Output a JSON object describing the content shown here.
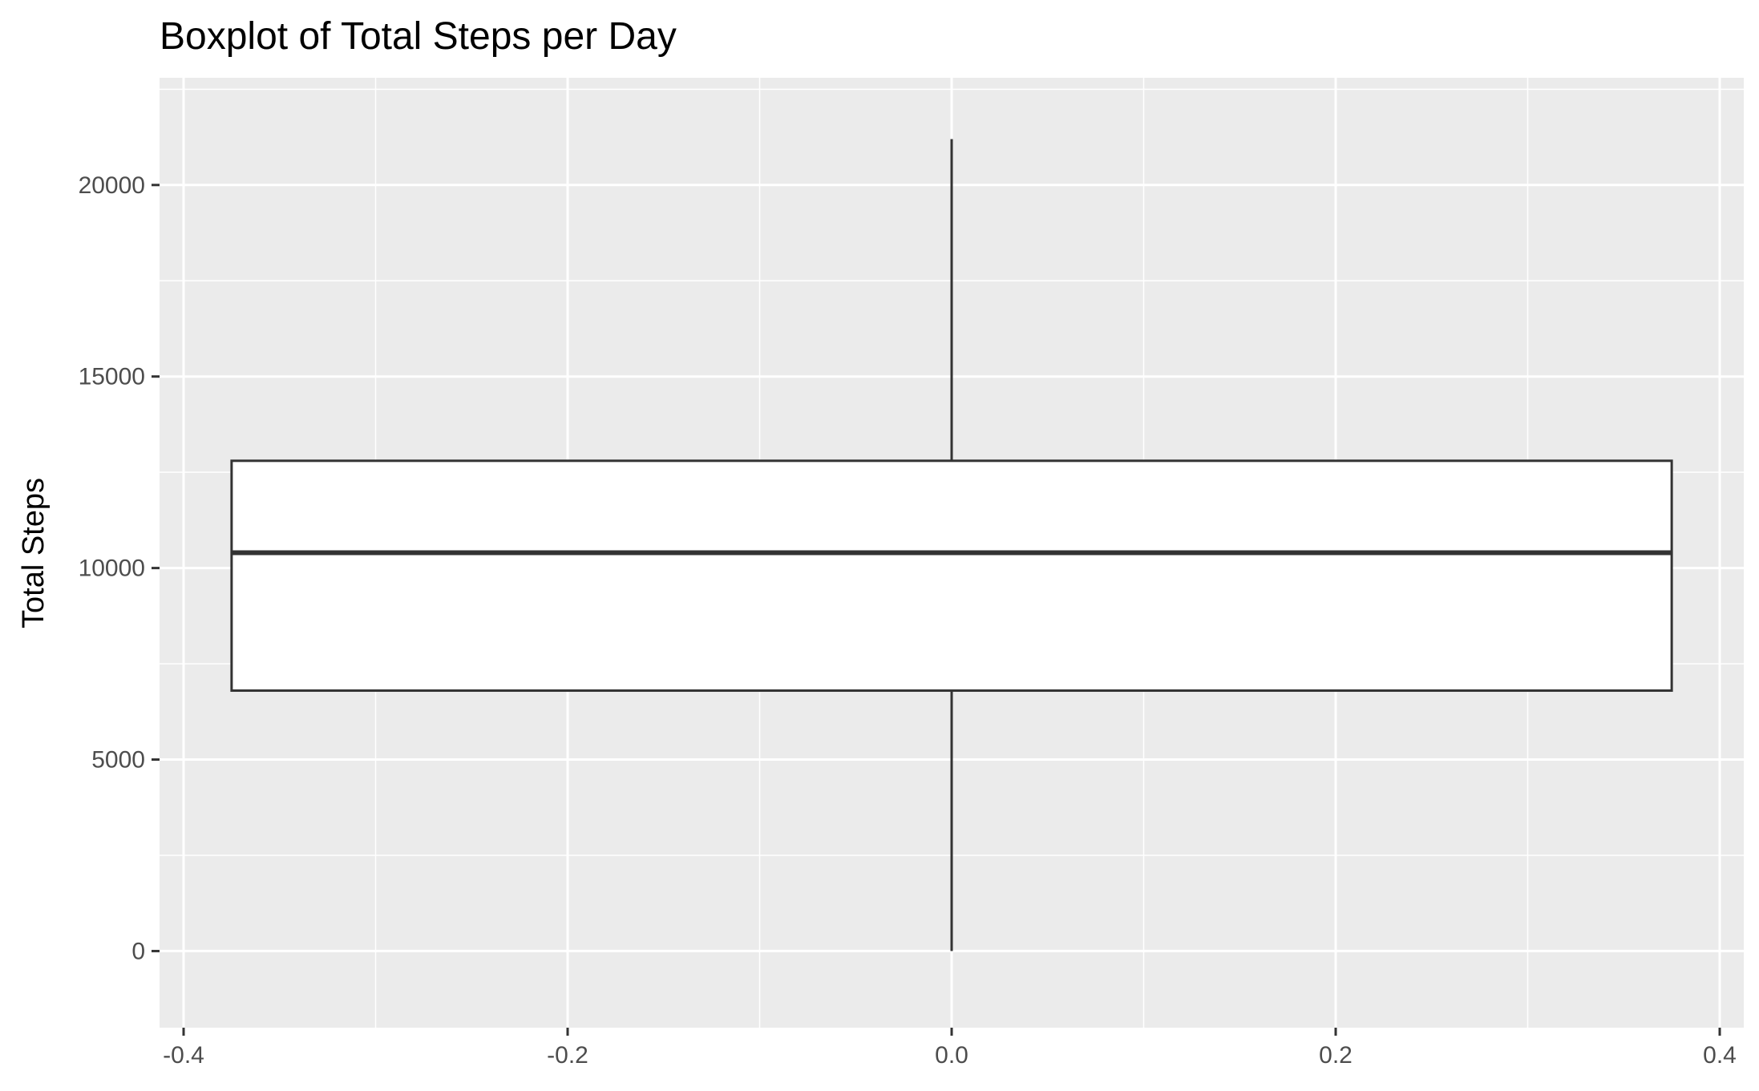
{
  "chart_data": {
    "type": "boxplot",
    "title": "Boxplot of Total Steps per Day",
    "xlabel": "",
    "ylabel": "Total Steps",
    "xlim": [
      -0.4,
      0.4
    ],
    "ylim": [
      -2000,
      22800
    ],
    "x_ticks": [
      "-0.4",
      "-0.2",
      "0.0",
      "0.2",
      "0.4"
    ],
    "x_tick_values": [
      -0.4,
      -0.2,
      0.0,
      0.2,
      0.4
    ],
    "y_ticks": [
      "0",
      "5000",
      "10000",
      "15000",
      "20000"
    ],
    "y_tick_values": [
      0,
      5000,
      10000,
      15000,
      20000
    ],
    "grid": true,
    "legend": "none",
    "box": {
      "x_center": 0.0,
      "x_left": -0.375,
      "x_right": 0.375,
      "whisker_min": 0,
      "q1": 6800,
      "median": 10400,
      "q3": 12800,
      "whisker_max": 21200
    },
    "colors": {
      "panel_background": "#ebebeb",
      "grid_line": "#ffffff",
      "box_fill": "#ffffff",
      "box_outline": "#333333",
      "tick_label": "#4d4d4d",
      "tick_mark": "#333333",
      "title": "#000000"
    }
  }
}
